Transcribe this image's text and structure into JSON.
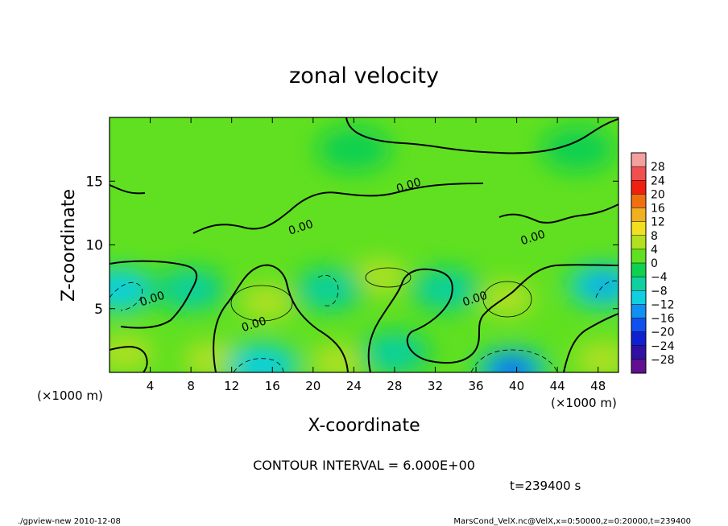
{
  "chart_data": {
    "type": "heatmap",
    "title": "zonal velocity",
    "xlabel": "X-coordinate",
    "ylabel": "Z-coordinate",
    "x_unit_left": "(×1000 m)",
    "x_unit_right": "(×1000 m)",
    "xlim": [
      0,
      50
    ],
    "ylim": [
      0,
      20
    ],
    "x_ticks": [
      4,
      8,
      12,
      16,
      20,
      24,
      28,
      32,
      36,
      40,
      44,
      48
    ],
    "y_ticks": [
      5,
      10,
      15
    ],
    "contour_interval_text": "CONTOUR INTERVAL = 6.000E+00",
    "time_text": "t=239400 s",
    "contour_labels": [
      {
        "text": "0.00",
        "x": 29.5,
        "z": 14.4
      },
      {
        "text": "0.00",
        "x": 18.9,
        "z": 11.1
      },
      {
        "text": "0.00",
        "x": 41.7,
        "z": 10.3
      },
      {
        "text": "0.00",
        "x": 36.0,
        "z": 5.5
      },
      {
        "text": "0.00",
        "x": 4.3,
        "z": 5.5
      },
      {
        "text": "0.00",
        "x": 14.3,
        "z": 3.5
      }
    ],
    "colorbar": {
      "labels": [
        "28",
        "24",
        "20",
        "16",
        "12",
        "8",
        "4",
        "0",
        "−4",
        "−8",
        "−12",
        "−16",
        "−20",
        "−24",
        "−28"
      ],
      "colors": [
        "#f4a0a0",
        "#f05050",
        "#f02010",
        "#f07010",
        "#f0b020",
        "#f0e020",
        "#b0e020",
        "#60e020",
        "#10d050",
        "#10d0a0",
        "#10d0e0",
        "#1090f0",
        "#1050f0",
        "#1020d0",
        "#3010a0",
        "#601090"
      ]
    },
    "field_features": [
      {
        "kind": "background",
        "value": 1
      },
      {
        "kind": "max",
        "x": 15.5,
        "z": 5.5,
        "value": 8
      },
      {
        "kind": "max",
        "x": 26.5,
        "z": 7.5,
        "value": 6
      },
      {
        "kind": "max",
        "x": 39.0,
        "z": 5.8,
        "value": 8
      },
      {
        "kind": "max",
        "x": 1.5,
        "z": 1.5,
        "value": 8
      },
      {
        "kind": "max",
        "x": 10.0,
        "z": 1.0,
        "value": 7
      },
      {
        "kind": "max",
        "x": 22.5,
        "z": 0.8,
        "value": 8
      },
      {
        "kind": "max",
        "x": 48.5,
        "z": 1.0,
        "value": 7
      },
      {
        "kind": "min",
        "x": 1.0,
        "z": 6.5,
        "value": -10
      },
      {
        "kind": "min",
        "x": 8.0,
        "z": 6.5,
        "value": -4
      },
      {
        "kind": "min",
        "x": 21.5,
        "z": 6.5,
        "value": -5
      },
      {
        "kind": "min",
        "x": 33.0,
        "z": 6.5,
        "value": -4
      },
      {
        "kind": "min",
        "x": 48.5,
        "z": 6.8,
        "value": -12
      },
      {
        "kind": "min",
        "x": 15.0,
        "z": 0.5,
        "value": -9
      },
      {
        "kind": "min",
        "x": 28.0,
        "z": 1.5,
        "value": -5
      },
      {
        "kind": "min",
        "x": 39.5,
        "z": 0.2,
        "value": -18
      },
      {
        "kind": "min",
        "x": 24.0,
        "z": 17.5,
        "value": -1.5
      },
      {
        "kind": "min",
        "x": 46.0,
        "z": 17.5,
        "value": -1.5
      }
    ]
  },
  "footer": {
    "left": "./gpview-new   2010-12-08",
    "right": "MarsCond_VelX.nc@VelX,x=0:50000,z=0:20000,t=239400"
  }
}
